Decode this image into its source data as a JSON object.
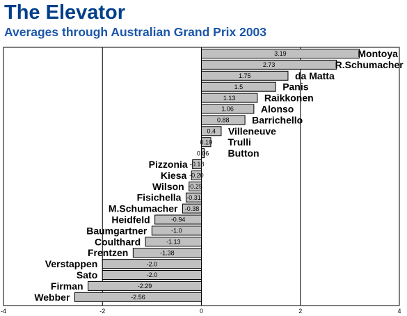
{
  "chart_data": {
    "type": "bar",
    "orientation": "horizontal",
    "title": "The Elevator",
    "subtitle": "Averages through Australian Grand Prix 2003",
    "categories": [
      "Montoya",
      "R.Schumacher",
      "da Matta",
      "Panis",
      "Raikkonen",
      "Alonso",
      "Barrichello",
      "Villeneuve",
      "Trulli",
      "Button",
      "Pizzonia",
      "Kiesa",
      "Wilson",
      "Fisichella",
      "M.Schumacher",
      "Heidfeld",
      "Baumgartner",
      "Coulthard",
      "Frentzen",
      "Verstappen",
      "Sato",
      "Firman",
      "Webber"
    ],
    "values": [
      3.19,
      2.73,
      1.75,
      1.5,
      1.13,
      1.06,
      0.88,
      0.4,
      0.19,
      0.06,
      -0.18,
      -0.2,
      -0.25,
      -0.31,
      -0.38,
      -0.94,
      -1.0,
      -1.13,
      -1.38,
      -2.0,
      -2.0,
      -2.29,
      -2.56
    ],
    "value_labels": [
      "3.19",
      "2.73",
      "1.75",
      "1.5",
      "1.13",
      "1.06",
      "0.88",
      "0.4",
      "0.19",
      "0.06",
      "-0.18",
      "-0.20",
      "-0.25",
      "-0.31",
      "-0.38",
      "-0.94",
      "-1.0",
      "-1.13",
      "-1.38",
      "-2.0",
      "-2.0",
      "-2.29",
      "-2.56"
    ],
    "xlim": [
      -4,
      4
    ],
    "xticks": [
      "-4",
      "-2",
      "0",
      "2",
      "4"
    ],
    "gridlines_x": [
      -2,
      0,
      2
    ],
    "bar_color": "#c0c0c0",
    "bar_edge_color": "#000000",
    "title_color": "#003f8a",
    "subtitle_color": "#1a56a8",
    "grid": true,
    "legend": false
  }
}
